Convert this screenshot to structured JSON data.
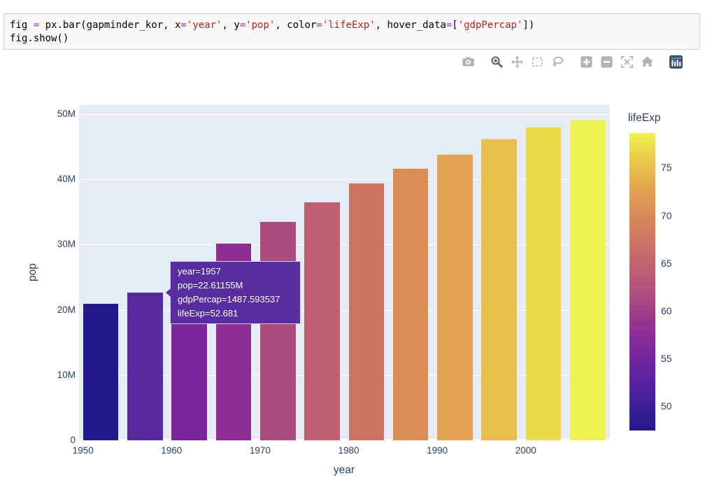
{
  "code_cell": {
    "lines": [
      {
        "tokens": [
          {
            "t": "fig "
          },
          {
            "t": "=",
            "c": "op"
          },
          {
            "t": " px.bar(gapminder_kor, x"
          },
          {
            "t": "=",
            "c": "op"
          },
          {
            "t": "'year'",
            "c": "str"
          },
          {
            "t": ", y"
          },
          {
            "t": "=",
            "c": "op"
          },
          {
            "t": "'pop'",
            "c": "str"
          },
          {
            "t": ", color"
          },
          {
            "t": "=",
            "c": "op"
          },
          {
            "t": "'lifeExp'",
            "c": "str"
          },
          {
            "t": ", hover_data"
          },
          {
            "t": "=",
            "c": "op"
          },
          {
            "t": "["
          },
          {
            "t": "'gdpPercap'",
            "c": "str"
          },
          {
            "t": "])"
          }
        ]
      },
      {
        "tokens": [
          {
            "t": "fig.show()"
          }
        ]
      }
    ]
  },
  "modebar": {
    "groups": [
      [
        {
          "name": "camera",
          "title": "Download plot as a png"
        }
      ],
      [
        {
          "name": "zoom",
          "title": "Zoom",
          "active": true
        },
        {
          "name": "pan",
          "title": "Pan"
        },
        {
          "name": "box-select",
          "title": "Box Select"
        },
        {
          "name": "lasso-select",
          "title": "Lasso Select"
        }
      ],
      [
        {
          "name": "zoom-in",
          "title": "Zoom in"
        },
        {
          "name": "zoom-out",
          "title": "Zoom out"
        },
        {
          "name": "autoscale",
          "title": "Autoscale"
        },
        {
          "name": "reset-axes",
          "title": "Reset axes"
        }
      ],
      [
        {
          "name": "plotly-logo",
          "title": "Produced with Plotly"
        }
      ]
    ]
  },
  "chart_data": {
    "type": "bar",
    "x": [
      1952,
      1957,
      1962,
      1967,
      1972,
      1977,
      1982,
      1987,
      1992,
      1997,
      2002,
      2007
    ],
    "series": [
      {
        "name": "pop_millions",
        "values": [
          20.95,
          22.61,
          26.42,
          30.13,
          33.5,
          36.44,
          39.33,
          41.62,
          43.81,
          46.17,
          47.97,
          49.04
        ]
      },
      {
        "name": "lifeExp_color_values",
        "values": [
          47.453,
          52.681,
          55.292,
          57.716,
          62.612,
          64.766,
          67.123,
          69.81,
          72.244,
          74.647,
          77.045,
          78.623
        ]
      }
    ],
    "bar_colors": [
      "#23188c",
      "#58299e",
      "#7a259c",
      "#8f2d93",
      "#aa4c7e",
      "#bf6071",
      "#cc7462",
      "#d98f55",
      "#e2a352",
      "#e9bd4a",
      "#ecd94c",
      "#eff34f"
    ],
    "xlabel": "year",
    "ylabel": "pop",
    "xlim": [
      1949.55,
      2009.5
    ],
    "ylim_millions": [
      0,
      51.4
    ],
    "bar_width_years": 4,
    "xticks": [
      {
        "v": 1950,
        "label": "1950"
      },
      {
        "v": 1960,
        "label": "1960"
      },
      {
        "v": 1970,
        "label": "1970"
      },
      {
        "v": 1980,
        "label": "1980"
      },
      {
        "v": 1990,
        "label": "1990"
      },
      {
        "v": 2000,
        "label": "2000"
      }
    ],
    "yticks": [
      {
        "v": 0,
        "label": "0"
      },
      {
        "v": 10,
        "label": "10M"
      },
      {
        "v": 20,
        "label": "20M"
      },
      {
        "v": 30,
        "label": "30M"
      },
      {
        "v": 40,
        "label": "40M"
      },
      {
        "v": 50,
        "label": "50M"
      }
    ],
    "plot_bg": "#e5ecf6",
    "grid_color": "#ffffff",
    "tick_color": "#2a3f5f",
    "legend_position": "right-colorbar",
    "grid": "horizontal-on"
  },
  "colorbar": {
    "title": "lifeExp",
    "cmin": 47.453,
    "cmax": 78.623,
    "ticks": [
      {
        "v": 50,
        "label": "50"
      },
      {
        "v": 55,
        "label": "55"
      },
      {
        "v": 60,
        "label": "60"
      },
      {
        "v": 65,
        "label": "65"
      },
      {
        "v": 70,
        "label": "70"
      },
      {
        "v": 75,
        "label": "75"
      }
    ],
    "gradient_stops": [
      [
        0,
        "#23188c"
      ],
      [
        11,
        "#45219c"
      ],
      [
        22,
        "#6c25a0"
      ],
      [
        33,
        "#8f2d96"
      ],
      [
        44,
        "#ac4a82"
      ],
      [
        56,
        "#c26370"
      ],
      [
        67,
        "#d27d5e"
      ],
      [
        78,
        "#df9a51"
      ],
      [
        89,
        "#e8c04a"
      ],
      [
        100,
        "#eff24f"
      ]
    ]
  },
  "tooltip": {
    "lines": [
      "year=1957",
      "pop=22.61155M",
      "gdpPercap=1487.593537",
      "lifeExp=52.681"
    ],
    "bg": "#592ca0"
  }
}
